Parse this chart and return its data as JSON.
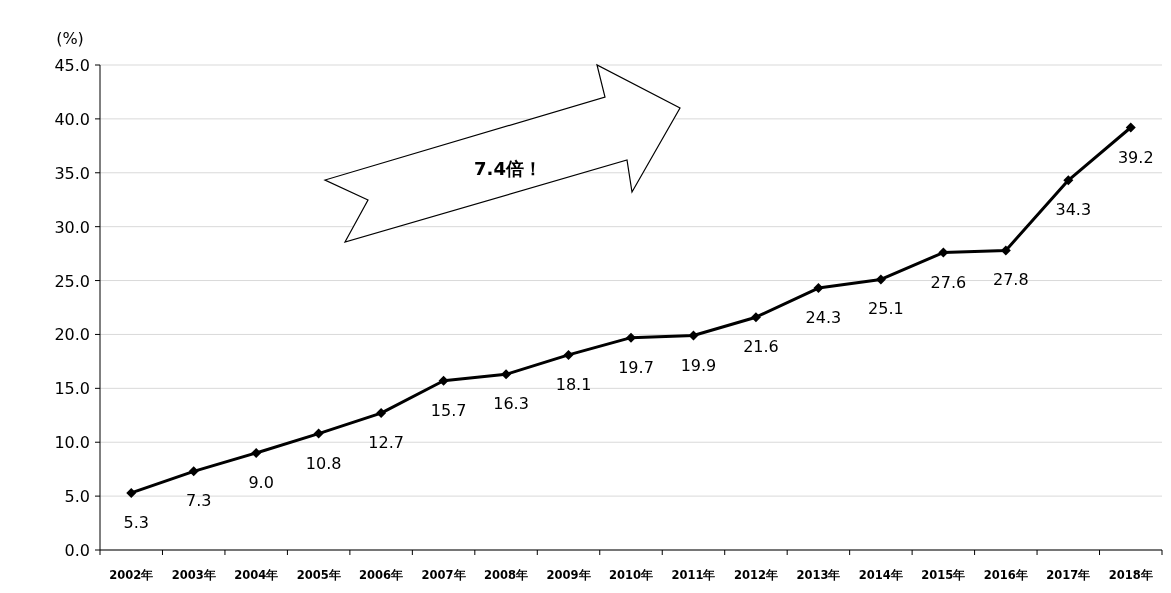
{
  "chart_data": {
    "type": "line",
    "ylabel": "(%)",
    "categories": [
      "2002年",
      "2003年",
      "2004年",
      "2005年",
      "2006年",
      "2007年",
      "2008年",
      "2009年",
      "2010年",
      "2011年",
      "2012年",
      "2013年",
      "2014年",
      "2015年",
      "2016年",
      "2017年",
      "2018年"
    ],
    "series": [
      {
        "color": "#000000",
        "values": [
          5.3,
          7.3,
          9.0,
          10.8,
          12.7,
          15.7,
          16.3,
          18.1,
          19.7,
          19.9,
          21.6,
          24.3,
          25.1,
          27.6,
          27.8,
          34.3,
          39.2
        ],
        "value_labels": [
          "5.3",
          "7.3",
          "9.0",
          "10.8",
          "12.7",
          "15.7",
          "16.3",
          "18.1",
          "19.7",
          "19.9",
          "21.6",
          "24.3",
          "25.1",
          "27.6",
          "27.8",
          "34.3",
          "39.2"
        ]
      }
    ],
    "ylim": [
      0,
      45
    ],
    "yticks": [
      {
        "value": 0,
        "label": "0.0"
      },
      {
        "value": 5,
        "label": "5.0"
      },
      {
        "value": 10,
        "label": "10.0"
      },
      {
        "value": 15,
        "label": "15.0"
      },
      {
        "value": 20,
        "label": "20.0"
      },
      {
        "value": 25,
        "label": "25.0"
      },
      {
        "value": 30,
        "label": "30.0"
      },
      {
        "value": 35,
        "label": "35.0"
      },
      {
        "value": 40,
        "label": "40.0"
      },
      {
        "value": 45,
        "label": "45.0"
      }
    ],
    "grid": "y",
    "marker": "diamond",
    "line_style": "solid",
    "annotations": [
      "7.4倍！"
    ]
  }
}
